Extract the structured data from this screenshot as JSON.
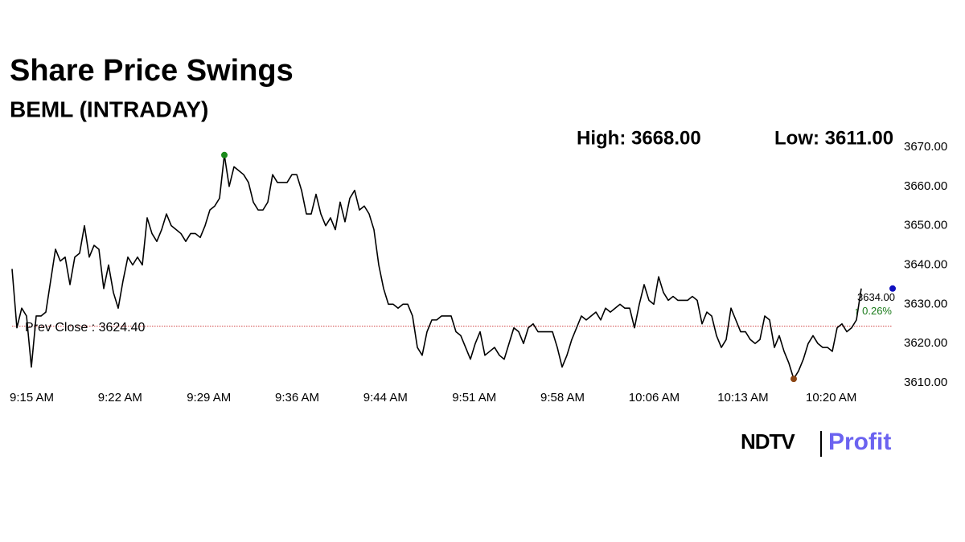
{
  "chart_data": {
    "type": "line",
    "title": "Share Price Swings",
    "subtitle": "BEML (INTRADAY)",
    "high_label": "High: 3668.00",
    "low_label": "Low: 3611.00",
    "last_label": "3634.00",
    "change_label": "↑ 0.26%",
    "prev_close": {
      "value": 3624.4,
      "label": "Prev Close : 3624.40"
    },
    "logo": {
      "left": "NDTV",
      "right": "Profit"
    },
    "color": "#000000",
    "grid": false,
    "xlim": [
      0,
      182.5
    ],
    "xticks": [
      {
        "value": 0,
        "label": "9:15 AM"
      },
      {
        "value": 18.3,
        "label": "9:22 AM"
      },
      {
        "value": 36.7,
        "label": "9:29 AM"
      },
      {
        "value": 55,
        "label": "9:36 AM"
      },
      {
        "value": 73.3,
        "label": "9:44 AM"
      },
      {
        "value": 91.7,
        "label": "9:51 AM"
      },
      {
        "value": 110,
        "label": "9:58 AM"
      },
      {
        "value": 128.3,
        "label": "10:06 AM"
      },
      {
        "value": 146.7,
        "label": "10:13 AM"
      },
      {
        "value": 165,
        "label": "10:20 AM"
      }
    ],
    "ylim": [
      3610,
      3670
    ],
    "yticks": [
      {
        "value": 3610,
        "label": "3610.00"
      },
      {
        "value": 3620,
        "label": "3620.00"
      },
      {
        "value": 3630,
        "label": "3630.00"
      },
      {
        "value": 3640,
        "label": "3640.00"
      },
      {
        "value": 3650,
        "label": "3650.00"
      },
      {
        "value": 3660,
        "label": "3660.00"
      },
      {
        "value": 3670,
        "label": "3670.00"
      }
    ],
    "values": [
      3639,
      3624,
      3629,
      3627,
      3614,
      3627,
      3627,
      3628,
      3636,
      3644,
      3641,
      3642,
      3635,
      3642,
      3643,
      3650,
      3642,
      3645,
      3644,
      3634,
      3640,
      3633,
      3629,
      3636,
      3642,
      3640,
      3642,
      3640,
      3652,
      3648,
      3646,
      3649,
      3653,
      3650,
      3649,
      3648,
      3646,
      3648,
      3648,
      3647,
      3650,
      3654,
      3655,
      3657,
      3668,
      3660,
      3665,
      3664,
      3663,
      3661,
      3656,
      3654,
      3654,
      3656,
      3663,
      3661,
      3661,
      3661,
      3663,
      3663,
      3659,
      3653,
      3653,
      3658,
      3653,
      3650,
      3652,
      3649,
      3656,
      3651,
      3657,
      3659,
      3654,
      3655,
      3653,
      3649,
      3640,
      3634,
      3630,
      3630,
      3629,
      3630,
      3630,
      3627,
      3619,
      3617,
      3623,
      3626,
      3626,
      3627,
      3627,
      3627,
      3623,
      3622,
      3619,
      3616,
      3620,
      3623,
      3617,
      3618,
      3619,
      3617,
      3616,
      3620,
      3624,
      3623,
      3620,
      3624,
      3625,
      3623,
      3623,
      3623,
      3623,
      3619,
      3614,
      3617,
      3621,
      3624,
      3627,
      3626,
      3627,
      3628,
      3626,
      3629,
      3628,
      3629,
      3630,
      3629,
      3629,
      3624,
      3630,
      3635,
      3631,
      3630,
      3637,
      3633,
      3631,
      3632,
      3631,
      3631,
      3631,
      3632,
      3631,
      3625,
      3628,
      3627,
      3622,
      3619,
      3621,
      3629,
      3626,
      3623,
      3623,
      3621,
      3620,
      3621,
      3627,
      3626,
      3619,
      3622,
      3618,
      3615,
      3611,
      3613,
      3616,
      3620,
      3622,
      3620,
      3619,
      3619,
      3618,
      3624,
      3625,
      3623,
      3624,
      3626,
      3634
    ]
  }
}
